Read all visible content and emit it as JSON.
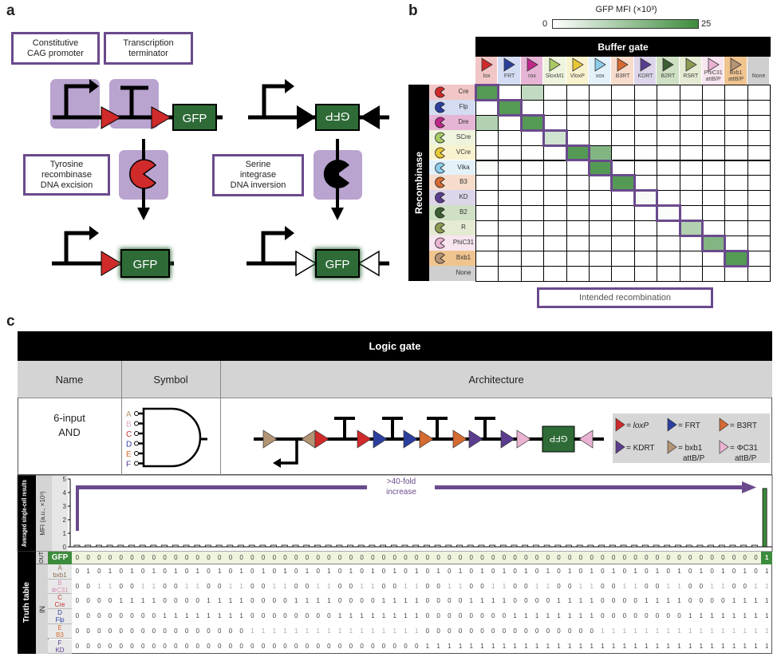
{
  "panel_a": {
    "label": "a",
    "box_promoter": [
      "Constitutive",
      "CAG promoter"
    ],
    "box_terminator": [
      "Transcription",
      "terminator"
    ],
    "box_tyrosine": [
      "Tyrosine",
      "recombinase",
      "DNA excision"
    ],
    "box_serine": [
      "Serine",
      "integrase",
      "DNA inversion"
    ],
    "gfp": "GFP",
    "colors": {
      "purple_bg": "#b9a3cf",
      "lox": "#d02a2a",
      "gfp": "#2e6b37"
    }
  },
  "panel_b": {
    "label": "b",
    "colorbar": {
      "title": "GFP MFI (×10³)",
      "min": "0",
      "max": "25",
      "min_value": 0,
      "max_value": 25,
      "low_color": "#ffffff",
      "high_color": "#3d8c3d"
    },
    "header": "Buffer gate",
    "row_header": "Recombinase",
    "legend_intended": "Intended recombination",
    "columns": [
      {
        "label": "lox",
        "color": "#d02a2a",
        "bg": "#f2c6c6"
      },
      {
        "label": "FRT",
        "color": "#2c3f9e",
        "bg": "#d3dcf2"
      },
      {
        "label": "rox",
        "color": "#c0288a",
        "bg": "#e6b5d5"
      },
      {
        "label": "SloxM1",
        "color": "#a9c964",
        "bg": "#eef4dd"
      },
      {
        "label": "VloxP",
        "color": "#e6c836",
        "bg": "#f9f2cf"
      },
      {
        "label": "vox",
        "color": "#8ccbea",
        "bg": "#e3f1f9"
      },
      {
        "label": "B3RT",
        "color": "#d56a32",
        "bg": "#f7dccc"
      },
      {
        "label": "KDRT",
        "color": "#5b3d8f",
        "bg": "#ddd6ea"
      },
      {
        "label": "B2RT",
        "color": "#3c5e33",
        "bg": "#cfe0c4"
      },
      {
        "label": "RSRT",
        "color": "#8c9b52",
        "bg": "#e5ead3"
      },
      {
        "label": "PhiC31 attB/P",
        "color": "#eab3d2",
        "bg": "#f8e5ef"
      },
      {
        "label": "Bxb1 attB/P",
        "color": "#b39474",
        "bg": "#f0c48f"
      },
      {
        "label": "None",
        "color": "",
        "bg": "#cfcfcf"
      }
    ],
    "rows": [
      {
        "label": "Cre",
        "color": "#d02a2a",
        "bg": "#f2c6c6"
      },
      {
        "label": "Flp",
        "color": "#2c3f9e",
        "bg": "#d3dcf2"
      },
      {
        "label": "Dre",
        "color": "#c0288a",
        "bg": "#e6b5d5"
      },
      {
        "label": "SCre",
        "color": "#a9c964",
        "bg": "#eef4dd"
      },
      {
        "label": "VCre",
        "color": "#e6c836",
        "bg": "#f9f2cf"
      },
      {
        "label": "Vika",
        "color": "#8ccbea",
        "bg": "#e3f1f9"
      },
      {
        "label": "B3",
        "color": "#d56a32",
        "bg": "#f7dccc"
      },
      {
        "label": "KD",
        "color": "#5b3d8f",
        "bg": "#ddd6ea"
      },
      {
        "label": "B2",
        "color": "#3c5e33",
        "bg": "#cfe0c4"
      },
      {
        "label": "R",
        "color": "#8c9b52",
        "bg": "#e5ead3"
      },
      {
        "label": "PhiC31",
        "color": "#eab3d2",
        "bg": "#f8e5ef"
      },
      {
        "label": "Bxb1",
        "color": "#b39474",
        "bg": "#f0c48f"
      },
      {
        "label": "None",
        "color": "",
        "bg": "#cfcfcf"
      }
    ],
    "heatmap_values": [
      [
        22,
        0,
        8,
        0,
        0,
        0,
        0,
        0,
        0,
        0,
        0,
        0,
        0
      ],
      [
        0,
        22,
        0,
        0,
        0,
        0,
        0,
        0,
        0,
        0,
        0,
        0,
        0
      ],
      [
        10,
        0,
        22,
        0,
        0,
        0,
        0,
        0,
        0,
        0,
        0,
        0,
        0
      ],
      [
        0,
        0,
        0,
        6,
        0,
        0,
        0,
        0,
        0,
        0,
        0,
        0,
        0
      ],
      [
        0,
        0,
        0,
        0,
        22,
        16,
        0,
        0,
        0,
        0,
        0,
        0,
        0
      ],
      [
        0.5,
        0,
        0,
        0,
        0,
        22,
        0,
        0,
        0,
        0,
        0,
        0,
        0
      ],
      [
        0,
        0,
        0,
        0,
        0,
        0,
        22,
        0,
        0,
        0,
        0,
        0,
        0
      ],
      [
        0,
        0,
        0,
        0,
        0,
        0,
        0,
        1,
        0,
        0,
        0,
        0,
        0
      ],
      [
        0,
        0,
        0,
        0,
        0,
        0,
        0,
        0,
        0.5,
        0,
        0,
        0,
        0
      ],
      [
        0,
        0,
        0,
        0,
        0,
        0,
        0,
        0,
        0,
        10,
        0,
        0,
        0
      ],
      [
        0,
        0,
        0,
        0,
        0,
        0,
        0,
        0,
        0,
        0,
        16,
        0,
        0
      ],
      [
        0,
        0,
        0,
        0,
        0,
        0,
        0,
        0,
        0,
        0,
        0,
        22,
        0
      ],
      [
        0,
        0,
        0,
        0,
        0,
        0,
        0,
        0,
        0,
        0,
        0,
        0,
        0
      ]
    ],
    "intended_pairs": [
      [
        0,
        0
      ],
      [
        1,
        1
      ],
      [
        2,
        2
      ],
      [
        3,
        3
      ],
      [
        4,
        4
      ],
      [
        5,
        5
      ],
      [
        6,
        6
      ],
      [
        7,
        7
      ],
      [
        8,
        8
      ],
      [
        9,
        9
      ],
      [
        10,
        10
      ],
      [
        11,
        11
      ]
    ],
    "highlight_color": "#6a4a8c"
  },
  "panel_c": {
    "label": "c",
    "header": "Logic gate",
    "col_name": "Name",
    "col_symbol": "Symbol",
    "col_arch": "Architecture",
    "gate_name": [
      "6-input",
      "AND"
    ],
    "inputs": [
      {
        "letter": "A",
        "color": "#b39474"
      },
      {
        "letter": "B",
        "color": "#e0a8c8"
      },
      {
        "letter": "C",
        "color": "#c03030"
      },
      {
        "letter": "D",
        "color": "#2c3f9e"
      },
      {
        "letter": "E",
        "color": "#d56a32"
      },
      {
        "letter": "F",
        "color": "#5b3d8f"
      }
    ],
    "gfp": "GFP",
    "legend": [
      {
        "label": "= loxP",
        "sub": "",
        "color": "#d02a2a",
        "italic": true
      },
      {
        "label": "= FRT",
        "sub": "",
        "color": "#2c3f9e"
      },
      {
        "label": "= B3RT",
        "sub": "",
        "color": "#d56a32"
      },
      {
        "label": "= KDRT",
        "sub": "",
        "color": "#5b3d8f"
      },
      {
        "label": "= bxb1",
        "sub": "attB/P",
        "color": "#b39474"
      },
      {
        "label": "= ΦC31",
        "sub": "attB/P",
        "color": "#eab3d2"
      }
    ],
    "chart_data": {
      "type": "bar",
      "ylabel": "MFI (a.u., ×10³)",
      "ylabel_sub": "GFP",
      "row_title": "Averaged single-cell results",
      "yticks": [
        "0",
        "1",
        "2",
        "3",
        "4",
        "5"
      ],
      "ylim": [
        0,
        5
      ],
      "annotation": [
        ">40-fold",
        "increase"
      ],
      "bar_color": "#3d8c3d",
      "values": [
        0.1,
        0.1,
        0.1,
        0.1,
        0.1,
        0.1,
        0.1,
        0.1,
        0.1,
        0.1,
        0.1,
        0.1,
        0.1,
        0.1,
        0.1,
        0.1,
        0.1,
        0.1,
        0.1,
        0.1,
        0.1,
        0.1,
        0.1,
        0.1,
        0.1,
        0.1,
        0.1,
        0.1,
        0.1,
        0.1,
        0.1,
        0.1,
        0.1,
        0.1,
        0.1,
        0.1,
        0.1,
        0.1,
        0.1,
        0.1,
        0.1,
        0.1,
        0.1,
        0.1,
        0.1,
        0.1,
        0.1,
        0.1,
        0.1,
        0.1,
        0.1,
        0.1,
        0.1,
        0.1,
        0.1,
        0.1,
        0.1,
        0.1,
        0.1,
        0.1,
        0.1,
        0.1,
        0.1,
        4.3
      ]
    },
    "truth_table": {
      "title": "Truth table",
      "out_label": "OUT",
      "in_label": "IN",
      "rows": [
        {
          "name": "GFP",
          "sub": "",
          "color": "#ffffff",
          "bits": "0000000000000000000000000000000000000000000000000000000000000001"
        },
        {
          "name": "A",
          "sub": "bxb1",
          "color": "#8a6e50",
          "bits": "0101010101010101010101010101010101010101010101010101010101010101"
        },
        {
          "name": "B",
          "sub": "ΦC31",
          "color": "#d890b8",
          "bits": "0011001100110011001100110011001100110011001100110011001100110011"
        },
        {
          "name": "C",
          "sub": "Cre",
          "color": "#c03030",
          "bits": "0000111100001111000011110000111100001111000011110000111100001111"
        },
        {
          "name": "D",
          "sub": "Flp",
          "color": "#2c3f9e",
          "bits": "0000000011111111000000001111111100000000111111110000000011111111"
        },
        {
          "name": "E",
          "sub": "B3",
          "color": "#d56a32",
          "bits": "0000000000000000111111111111111100000000000000001111111111111111"
        },
        {
          "name": "F",
          "sub": "KD",
          "color": "#5b3d8f",
          "bits": "0000000000000000000000000000000011111111111111111111111111111111"
        }
      ]
    }
  }
}
